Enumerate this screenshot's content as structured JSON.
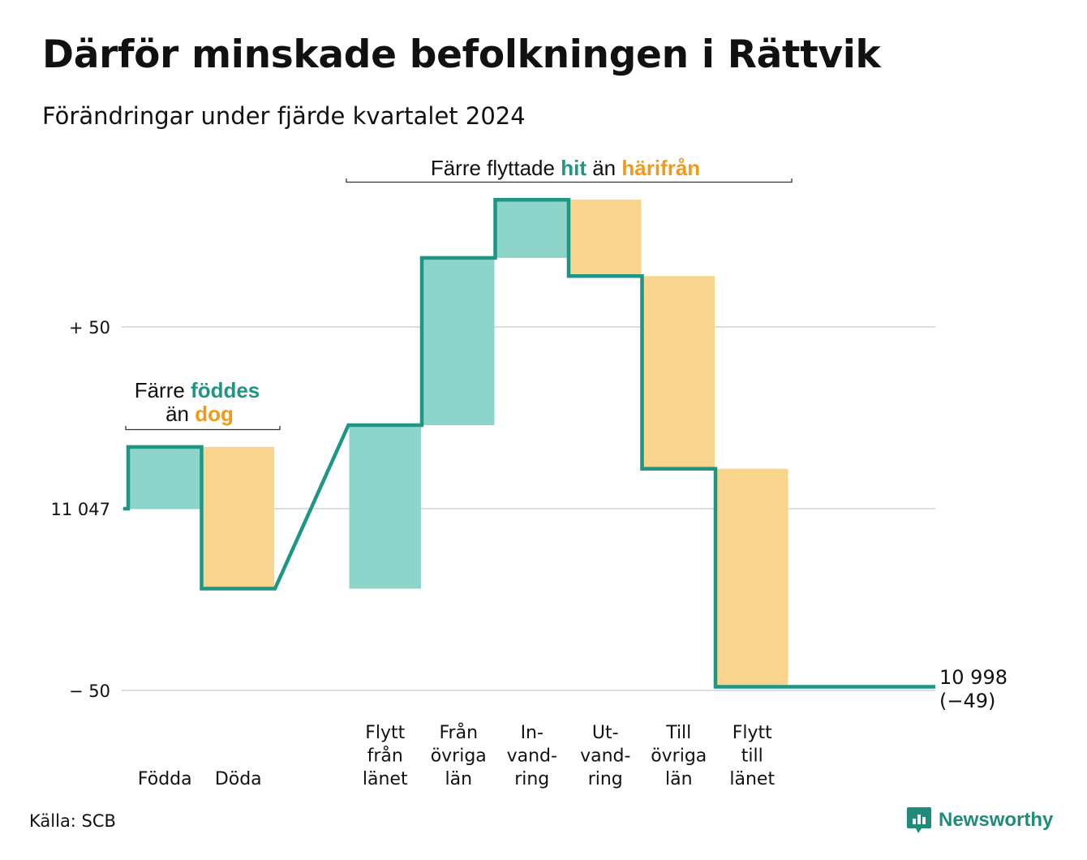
{
  "title": "Därför minskade befolkningen i Rättvik",
  "subtitle": "Förändringar under fjärde kvartalet 2024",
  "source": "Källa: SCB",
  "logo_text": "Newsworthy",
  "colors": {
    "line": "#1f9584",
    "gain": "#8dd5cb",
    "loss": "#f9d48c",
    "orange": "#f09a1a",
    "grid": "#dddddd"
  },
  "chart_data": {
    "type": "waterfall",
    "start_value": 11047,
    "end_value": 10998,
    "end_change": -49,
    "ylim": [
      -55,
      82
    ],
    "yticks": [
      {
        "value": 50,
        "label": "+ 50"
      },
      {
        "value": 0,
        "label": "11 047"
      },
      {
        "value": -50,
        "label": "− 50"
      }
    ],
    "steps": [
      {
        "name": "Födda",
        "label_lines": [
          "Födda"
        ],
        "change": 17,
        "kind": "gain"
      },
      {
        "name": "Döda",
        "label_lines": [
          "Döda"
        ],
        "change": -39,
        "kind": "loss"
      },
      {
        "name": "Flytt från länet",
        "label_lines": [
          "Flytt",
          "från",
          "länet"
        ],
        "change": 45,
        "kind": "gain"
      },
      {
        "name": "Från övriga län",
        "label_lines": [
          "Från",
          "övriga",
          "län"
        ],
        "change": 46,
        "kind": "gain"
      },
      {
        "name": "Invandring",
        "label_lines": [
          "In-",
          "vand-",
          "ring"
        ],
        "change": 16,
        "kind": "gain"
      },
      {
        "name": "Utvandring",
        "label_lines": [
          "Ut-",
          "vand-",
          "ring"
        ],
        "change": -21,
        "kind": "loss"
      },
      {
        "name": "Till övriga län",
        "label_lines": [
          "Till",
          "övriga",
          "län"
        ],
        "change": -53,
        "kind": "loss"
      },
      {
        "name": "Flytt till länet",
        "label_lines": [
          "Flytt",
          "till",
          "länet"
        ],
        "change": -60,
        "kind": "loss"
      }
    ],
    "end_label_lines": [
      "10 998",
      "(−49)"
    ],
    "annotations": [
      {
        "parts": [
          {
            "text": "Färre ",
            "color": "dark"
          },
          {
            "text": "föddes",
            "color": "gain"
          }
        ],
        "line2": [
          {
            "text": "än ",
            "color": "dark"
          },
          {
            "text": "dog",
            "color": "loss"
          }
        ]
      },
      {
        "parts": [
          {
            "text": "Färre flyttade ",
            "color": "dark"
          },
          {
            "text": "hit",
            "color": "gain"
          },
          {
            "text": " än ",
            "color": "dark"
          },
          {
            "text": "härifrån",
            "color": "loss"
          }
        ]
      }
    ]
  }
}
